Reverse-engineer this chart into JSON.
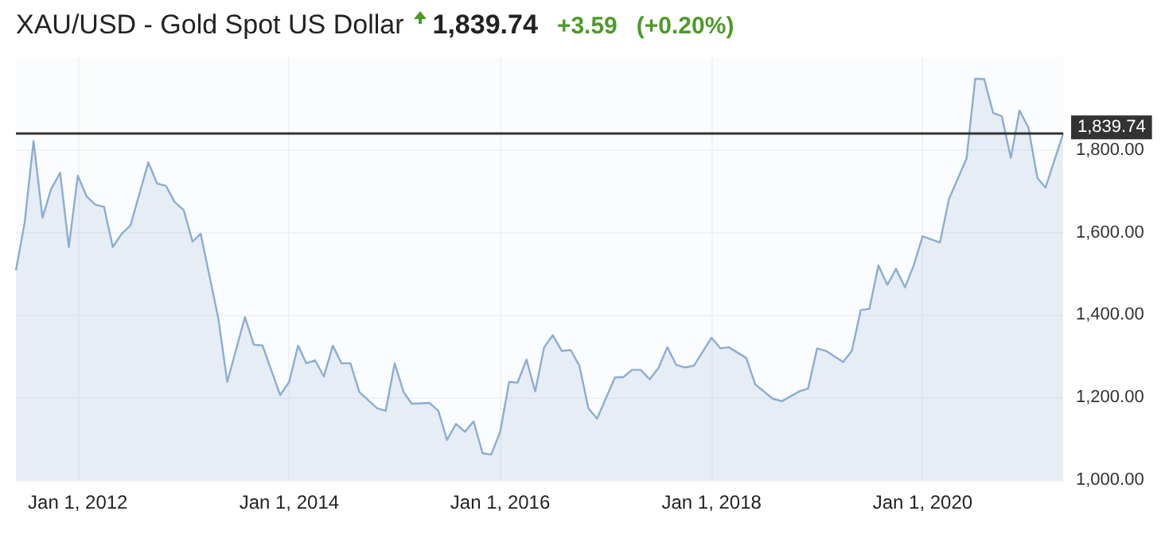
{
  "chart_data": {
    "type": "area",
    "title": "XAU/USD - Gold Spot US Dollar",
    "annotations": [
      "1,839.74",
      "+3.59",
      "(+0.20%)"
    ],
    "x": [
      "2011-06",
      "2011-07",
      "2011-08",
      "2011-09",
      "2011-10",
      "2011-11",
      "2011-12",
      "2012-01",
      "2012-02",
      "2012-03",
      "2012-04",
      "2012-05",
      "2012-06",
      "2012-07",
      "2012-09",
      "2012-10",
      "2012-11",
      "2012-12",
      "2013-01",
      "2013-02",
      "2013-03",
      "2013-05",
      "2013-06",
      "2013-08",
      "2013-09",
      "2013-10",
      "2013-12",
      "2014-01",
      "2014-02",
      "2014-03",
      "2014-04",
      "2014-05",
      "2014-06",
      "2014-07",
      "2014-08",
      "2014-09",
      "2014-11",
      "2014-12",
      "2015-01",
      "2015-02",
      "2015-03",
      "2015-05",
      "2015-06",
      "2015-07",
      "2015-08",
      "2015-09",
      "2015-10",
      "2015-11",
      "2015-12",
      "2016-01",
      "2016-02",
      "2016-03",
      "2016-04",
      "2016-05",
      "2016-06",
      "2016-07",
      "2016-08",
      "2016-09",
      "2016-10",
      "2016-11",
      "2016-12",
      "2017-02",
      "2017-03",
      "2017-04",
      "2017-05",
      "2017-06",
      "2017-07",
      "2017-08",
      "2017-09",
      "2017-10",
      "2017-11",
      "2018-01",
      "2018-02",
      "2018-03",
      "2018-05",
      "2018-06",
      "2018-08",
      "2018-09",
      "2018-11",
      "2018-12",
      "2019-01",
      "2019-02",
      "2019-04",
      "2019-05",
      "2019-06",
      "2019-07",
      "2019-08",
      "2019-09",
      "2019-10",
      "2019-11",
      "2019-12",
      "2020-01",
      "2020-03",
      "2020-04",
      "2020-06",
      "2020-07",
      "2020-08",
      "2020-09",
      "2020-10",
      "2020-11",
      "2020-12",
      "2021-01",
      "2021-02",
      "2021-03",
      "2021-05"
    ],
    "series": [
      {
        "color": "#8badd3",
        "values": [
          1508,
          1623,
          1822,
          1636,
          1706,
          1745,
          1565,
          1738,
          1687,
          1668,
          1662,
          1565,
          1597,
          1617,
          1770,
          1719,
          1713,
          1674,
          1655,
          1578,
          1597,
          1392,
          1238,
          1395,
          1328,
          1326,
          1206,
          1238,
          1326,
          1283,
          1290,
          1251,
          1326,
          1283,
          1283,
          1213,
          1174,
          1168,
          1283,
          1213,
          1185,
          1187,
          1168,
          1097,
          1136,
          1117,
          1142,
          1065,
          1062,
          1117,
          1238,
          1236,
          1292,
          1215,
          1322,
          1351,
          1313,
          1315,
          1277,
          1174,
          1149,
          1249,
          1249,
          1267,
          1267,
          1244,
          1271,
          1322,
          1279,
          1273,
          1277,
          1345,
          1319,
          1322,
          1296,
          1232,
          1197,
          1191,
          1215,
          1222,
          1319,
          1313,
          1286,
          1313,
          1412,
          1415,
          1520,
          1473,
          1512,
          1467,
          1520,
          1591,
          1576,
          1681,
          1780,
          1973,
          1972,
          1890,
          1882,
          1781,
          1896,
          1854,
          1732,
          1709,
          1840
        ]
      }
    ],
    "xlim": [
      "2011-06",
      "2021-05"
    ],
    "xticks": [
      {
        "value": "2012-01-01",
        "label": "Jan 1, 2012"
      },
      {
        "value": "2014-01-01",
        "label": "Jan 1, 2014"
      },
      {
        "value": "2016-01-01",
        "label": "Jan 1, 2016"
      },
      {
        "value": "2018-01-01",
        "label": "Jan 1, 2018"
      },
      {
        "value": "2020-01-01",
        "label": "Jan 1, 2020"
      }
    ],
    "ylim": [
      1000,
      2025
    ],
    "yticks": [
      {
        "value": 1000,
        "label": "1,000.00"
      },
      {
        "value": 1200,
        "label": "1,200.00"
      },
      {
        "value": 1400,
        "label": "1,400.00"
      },
      {
        "value": 1600,
        "label": "1,600.00"
      },
      {
        "value": 1800,
        "label": "1,800.00"
      }
    ],
    "ref_lines": [
      {
        "axis": "y",
        "value": 1839.74,
        "label": "1,839.74",
        "color": "#333333"
      }
    ],
    "grid": true,
    "marker": "none",
    "line_style": "solid"
  }
}
